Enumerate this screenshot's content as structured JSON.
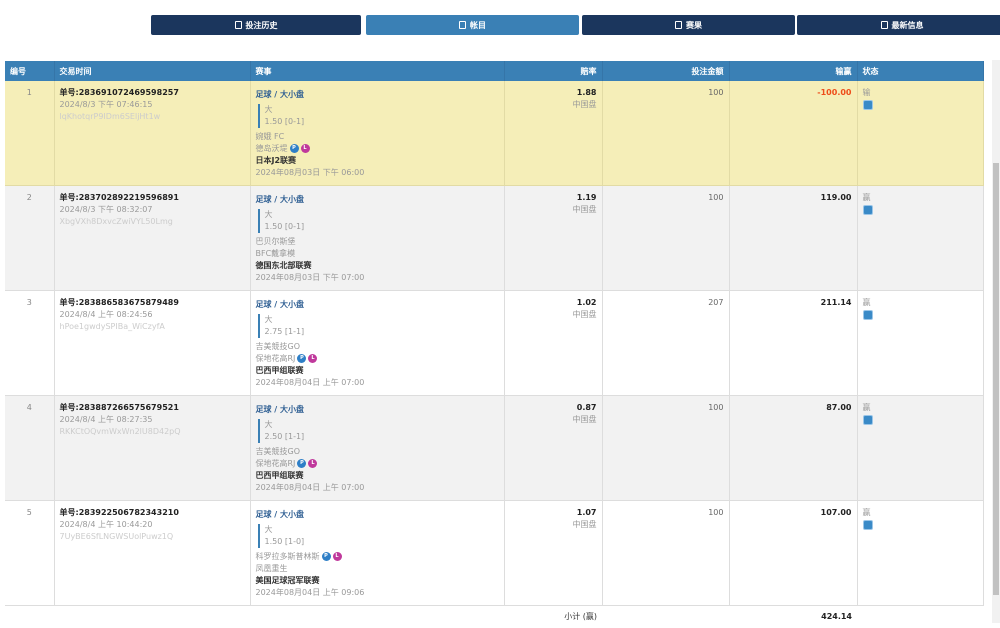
{
  "nav": [
    {
      "label": "投注历史",
      "icon": "clipboard-icon",
      "active": false
    },
    {
      "label": "帐目",
      "icon": "document-icon",
      "active": true
    },
    {
      "label": "赛果",
      "icon": "trophy-icon",
      "active": false
    },
    {
      "label": "最新信息",
      "icon": "mail-icon",
      "active": false
    }
  ],
  "headers": [
    "编号",
    "交易时间",
    "赛事",
    "赔率",
    "投注金额",
    "输赢",
    "状态"
  ],
  "rows": [
    {
      "no": "1",
      "ticket": "单号:283691072469598257",
      "time": "2024/8/3 下午 07:46:15",
      "hash": "lqKhotqrP9IDm6SEljHt1w",
      "sport": "足球 / 大小盘",
      "pick": "大",
      "line": "1.50 [0-1]",
      "home": "婉娥 FC",
      "away": "德岛沃堤",
      "league": "日本J2联赛",
      "kickoff": "2024年08月03日 下午 06:00",
      "odds": "1.88",
      "market": "中国盘",
      "stake": "100",
      "result": "-100.00",
      "status": "输"
    },
    {
      "no": "2",
      "ticket": "单号:283702892219596891",
      "time": "2024/8/3 下午 08:32:07",
      "hash": "XbgVXh8DxvcZwiVYL50Lmg",
      "sport": "足球 / 大小盘",
      "pick": "大",
      "line": "1.50 [0-1]",
      "home": "巴贝尔斯堡",
      "away": "BFC戴拿模",
      "league": "德国东北部联赛",
      "kickoff": "2024年08月03日 下午 07:00",
      "odds": "1.19",
      "market": "中国盘",
      "stake": "100",
      "result": "119.00",
      "status": "赢"
    },
    {
      "no": "3",
      "ticket": "单号:283886583675879489",
      "time": "2024/8/4 上午 08:24:56",
      "hash": "hPoe1gwdySPIBa_WiCzyfA",
      "sport": "足球 / 大小盘",
      "pick": "大",
      "line": "2.75 [1-1]",
      "home": "吉美競技GO",
      "away": "保地花高RJ",
      "league": "巴西甲组联赛",
      "kickoff": "2024年08月04日 上午 07:00",
      "odds": "1.02",
      "market": "中国盘",
      "stake": "207",
      "result": "211.14",
      "status": "赢"
    },
    {
      "no": "4",
      "ticket": "单号:283887266575679521",
      "time": "2024/8/4 上午 08:27:35",
      "hash": "RKKCtOQvmWxWn2lU8D42pQ",
      "sport": "足球 / 大小盘",
      "pick": "大",
      "line": "2.50 [1-1]",
      "home": "吉美競技GO",
      "away": "保地花高RJ",
      "league": "巴西甲组联赛",
      "kickoff": "2024年08月04日 上午 07:00",
      "odds": "0.87",
      "market": "中国盘",
      "stake": "100",
      "result": "87.00",
      "status": "赢"
    },
    {
      "no": "5",
      "ticket": "单号:283922506782343210",
      "time": "2024/8/4 上午 10:44:20",
      "hash": "7UyBE6SfLNGWSUolPuwz1Q",
      "sport": "足球 / 大小盘",
      "pick": "大",
      "line": "1.50 [1-0]",
      "home": "科罗拉多斯普林斯",
      "away": "凤凰重生",
      "league": "美国足球冠军联赛",
      "kickoff": "2024年08月04日 上午 09:06",
      "odds": "1.07",
      "market": "中国盘",
      "stake": "100",
      "result": "107.00",
      "status": "赢"
    }
  ],
  "badges": [
    "P",
    "L"
  ],
  "subtotal": {
    "label": "小计 (赢)",
    "value": "424.14"
  },
  "colors": {
    "nav_dark": "#1b365d",
    "accent": "#3a80b5",
    "highlight_row": "#f5eeb8",
    "loss": "#ee4d1a"
  }
}
